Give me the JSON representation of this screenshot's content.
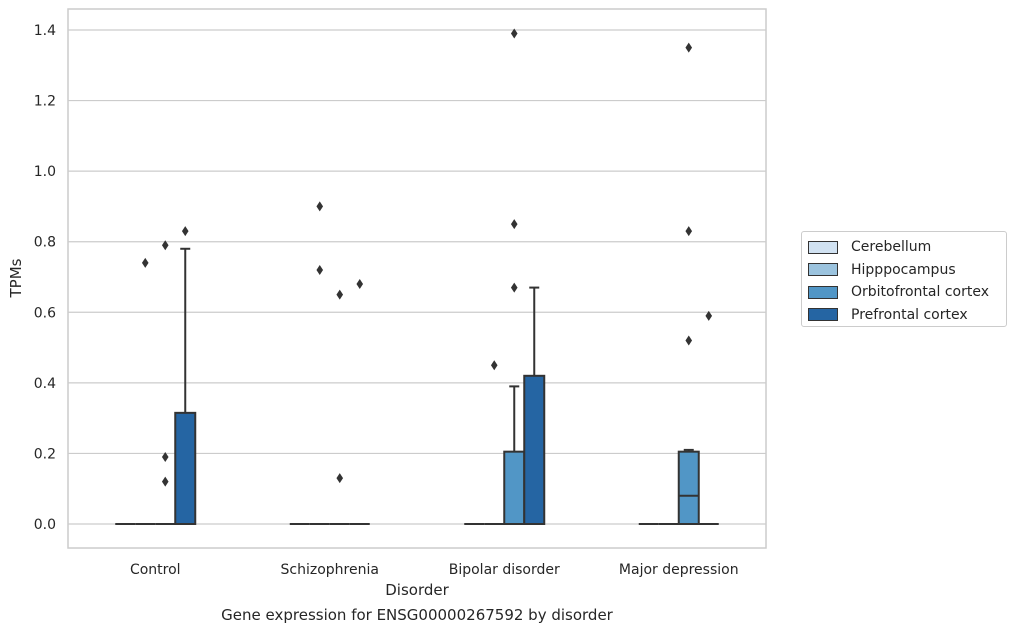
{
  "caption": "Gene expression for ENSG00000267592 by disorder",
  "chart_data": {
    "type": "box",
    "xlabel": "Disorder",
    "ylabel": "TPMs",
    "ylim": [
      -0.07,
      1.46
    ],
    "yticks": [
      0.0,
      0.2,
      0.4,
      0.6,
      0.8,
      1.0,
      1.2,
      1.4
    ],
    "ytick_labels": [
      "0.0",
      "0.2",
      "0.4",
      "0.6",
      "0.8",
      "1.0",
      "1.2",
      "1.4"
    ],
    "grid": "horizontal",
    "legend_position": "right",
    "categories": [
      "Control",
      "Schizophrenia",
      "Bipolar disorder",
      "Major depression"
    ],
    "series": [
      {
        "name": "Cerebellum",
        "color": "#d1e2f2",
        "boxes": [
          {
            "q1": 0,
            "median": 0,
            "q3": 0,
            "whisker_low": 0,
            "whisker_high": 0,
            "outliers": []
          },
          {
            "q1": 0,
            "median": 0,
            "q3": 0,
            "whisker_low": 0,
            "whisker_high": 0,
            "outliers": []
          },
          {
            "q1": 0,
            "median": 0,
            "q3": 0,
            "whisker_low": 0,
            "whisker_high": 0,
            "outliers": []
          },
          {
            "q1": 0,
            "median": 0,
            "q3": 0,
            "whisker_low": 0,
            "whisker_high": 0,
            "outliers": []
          }
        ]
      },
      {
        "name": "Hipppocampus",
        "color": "#9bc3de",
        "boxes": [
          {
            "q1": 0,
            "median": 0,
            "q3": 0,
            "whisker_low": 0,
            "whisker_high": 0,
            "outliers": [
              0.74
            ]
          },
          {
            "q1": 0,
            "median": 0,
            "q3": 0,
            "whisker_low": 0,
            "whisker_high": 0,
            "outliers": [
              0.72,
              0.9
            ]
          },
          {
            "q1": 0,
            "median": 0,
            "q3": 0,
            "whisker_low": 0,
            "whisker_high": 0,
            "outliers": [
              0.45
            ]
          },
          {
            "q1": 0,
            "median": 0,
            "q3": 0,
            "whisker_low": 0,
            "whisker_high": 0,
            "outliers": []
          }
        ]
      },
      {
        "name": "Orbitofrontal cortex",
        "color": "#5196c6",
        "boxes": [
          {
            "q1": 0,
            "median": 0,
            "q3": 0,
            "whisker_low": 0,
            "whisker_high": 0,
            "outliers": [
              0.12,
              0.19,
              0.79
            ]
          },
          {
            "q1": 0,
            "median": 0,
            "q3": 0,
            "whisker_low": 0,
            "whisker_high": 0,
            "outliers": [
              0.13,
              0.65
            ]
          },
          {
            "q1": 0,
            "median": 0,
            "q3": 0.205,
            "whisker_low": 0,
            "whisker_high": 0.39,
            "outliers": [
              0.67,
              0.85,
              1.39
            ]
          },
          {
            "q1": 0,
            "median": 0.08,
            "q3": 0.205,
            "whisker_low": 0,
            "whisker_high": 0.21,
            "outliers": [
              0.52,
              0.83,
              1.35
            ]
          }
        ]
      },
      {
        "name": "Prefrontal cortex",
        "color": "#2565a3",
        "boxes": [
          {
            "q1": 0,
            "median": 0,
            "q3": 0.315,
            "whisker_low": 0,
            "whisker_high": 0.78,
            "outliers": [
              0.83
            ]
          },
          {
            "q1": 0,
            "median": 0,
            "q3": 0,
            "whisker_low": 0,
            "whisker_high": 0,
            "outliers": [
              0.68
            ]
          },
          {
            "q1": 0,
            "median": 0,
            "q3": 0.42,
            "whisker_low": 0,
            "whisker_high": 0.67,
            "outliers": []
          },
          {
            "q1": 0,
            "median": 0,
            "q3": 0,
            "whisker_low": 0,
            "whisker_high": 0,
            "outliers": [
              0.59
            ]
          }
        ]
      }
    ]
  }
}
